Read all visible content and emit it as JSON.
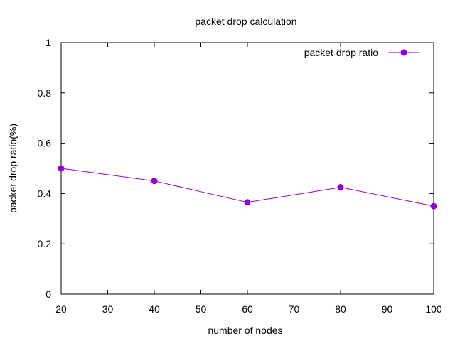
{
  "chart_data": {
    "type": "line",
    "title": "packet drop calculation",
    "xlabel": "number of nodes",
    "ylabel": "packet drop ratio(%)",
    "xlim": [
      20,
      100
    ],
    "ylim": [
      0,
      1
    ],
    "xticks": [
      20,
      30,
      40,
      50,
      60,
      70,
      80,
      90,
      100
    ],
    "yticks": [
      0,
      0.2,
      0.4,
      0.6,
      0.8,
      1
    ],
    "xtick_labels": [
      "20",
      "30",
      "40",
      "50",
      "60",
      "70",
      "80",
      "90",
      "100"
    ],
    "ytick_labels": [
      "0",
      "0.2",
      "0.4",
      "0.6",
      "0.8",
      "1"
    ],
    "grid": false,
    "legend_position": "top-right",
    "series": [
      {
        "name": "packet drop ratio",
        "color": "#9400d3",
        "marker": "circle",
        "x": [
          20,
          40,
          60,
          80,
          100
        ],
        "y": [
          0.5,
          0.45,
          0.365,
          0.425,
          0.35
        ]
      }
    ]
  }
}
